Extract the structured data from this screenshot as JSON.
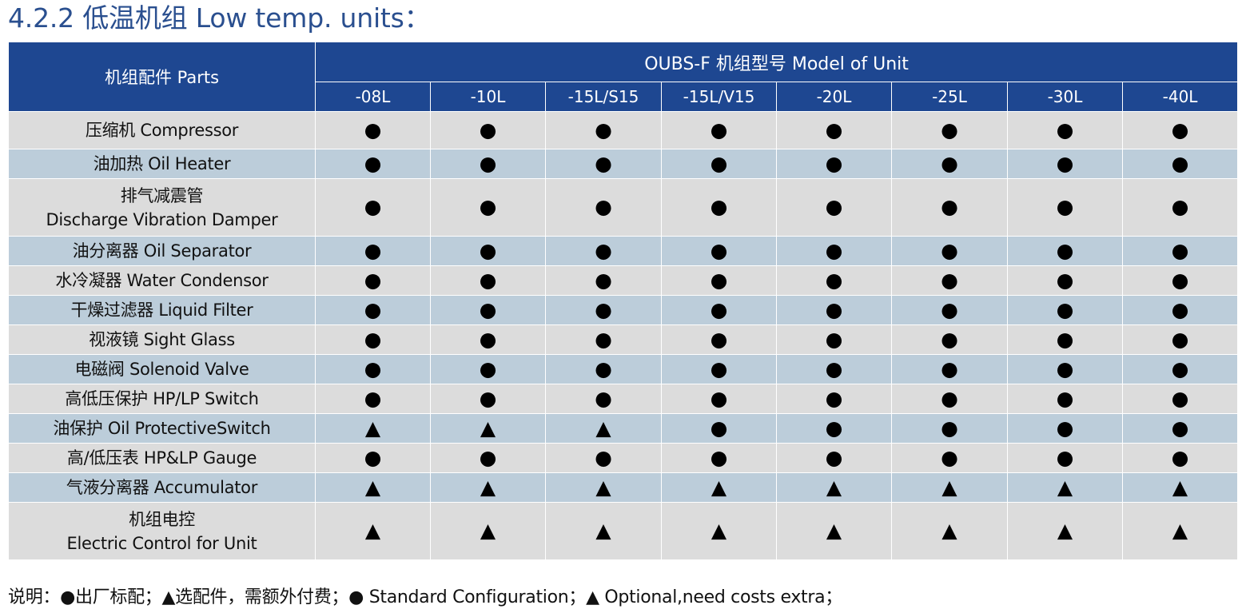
{
  "title": "4.2.2 低温机组 Low temp. units：",
  "table": {
    "parts_header": "机组配件 Parts",
    "model_header": "OUBS-F 机组型号 Model of Unit",
    "columns": [
      "-08L",
      "-10L",
      "-15L/S15",
      "-15L/V15",
      "-20L",
      "-25L",
      "-30L",
      "-40L"
    ],
    "symbols": {
      "S": "●",
      "O": "▲"
    },
    "rows": [
      {
        "part": [
          "压缩机 Compressor"
        ],
        "marks": [
          "S",
          "S",
          "S",
          "S",
          "S",
          "S",
          "S",
          "S"
        ]
      },
      {
        "part": [
          "油加热 Oil Heater"
        ],
        "marks": [
          "S",
          "S",
          "S",
          "S",
          "S",
          "S",
          "S",
          "S"
        ]
      },
      {
        "part": [
          "排气减震管",
          "Discharge Vibration Damper"
        ],
        "marks": [
          "S",
          "S",
          "S",
          "S",
          "S",
          "S",
          "S",
          "S"
        ]
      },
      {
        "part": [
          "油分离器 Oil Separator"
        ],
        "marks": [
          "S",
          "S",
          "S",
          "S",
          "S",
          "S",
          "S",
          "S"
        ]
      },
      {
        "part": [
          "水冷凝器 Water Condensor"
        ],
        "marks": [
          "S",
          "S",
          "S",
          "S",
          "S",
          "S",
          "S",
          "S"
        ]
      },
      {
        "part": [
          "干燥过滤器  Liquid Filter"
        ],
        "marks": [
          "S",
          "S",
          "S",
          "S",
          "S",
          "S",
          "S",
          "S"
        ]
      },
      {
        "part": [
          "视液镜 Sight Glass"
        ],
        "marks": [
          "S",
          "S",
          "S",
          "S",
          "S",
          "S",
          "S",
          "S"
        ]
      },
      {
        "part": [
          "电磁阀 Solenoid Valve"
        ],
        "marks": [
          "S",
          "S",
          "S",
          "S",
          "S",
          "S",
          "S",
          "S"
        ]
      },
      {
        "part": [
          "高低压保护 HP/LP Switch"
        ],
        "marks": [
          "S",
          "S",
          "S",
          "S",
          "S",
          "S",
          "S",
          "S"
        ]
      },
      {
        "part": [
          "油保护 Oil ProtectiveSwitch"
        ],
        "marks": [
          "O",
          "O",
          "O",
          "S",
          "S",
          "S",
          "S",
          "S"
        ]
      },
      {
        "part": [
          "高/低压表 HP&LP Gauge"
        ],
        "marks": [
          "S",
          "S",
          "S",
          "S",
          "S",
          "S",
          "S",
          "S"
        ]
      },
      {
        "part": [
          "气液分离器 Accumulator"
        ],
        "marks": [
          "O",
          "O",
          "O",
          "O",
          "O",
          "O",
          "O",
          "O"
        ]
      },
      {
        "part": [
          "机组电控",
          "Electric Control for Unit"
        ],
        "marks": [
          "O",
          "O",
          "O",
          "O",
          "O",
          "O",
          "O",
          "O"
        ]
      }
    ]
  },
  "note": "说明：●出厂标配；▲选配件，需额外付费；● Standard Configuration；▲ Optional,need costs extra；"
}
